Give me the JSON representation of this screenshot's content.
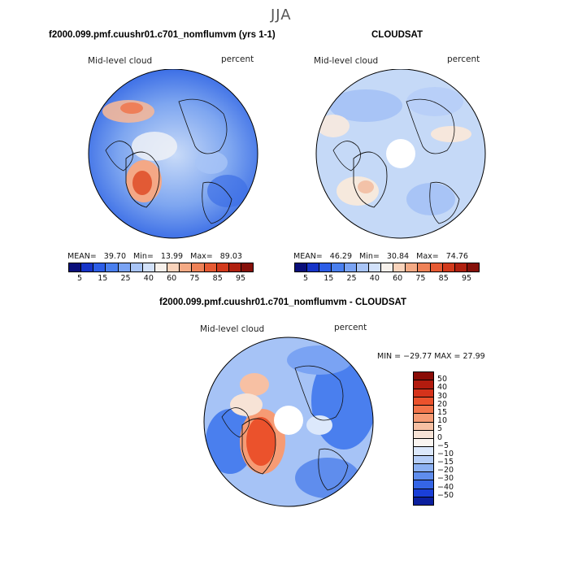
{
  "season": "JJA",
  "panels": [
    {
      "title": "f2000.099.pmf.cuushr01.c701_nomflumvm (yrs 1-1)",
      "variable": "Mid-level cloud",
      "units": "percent",
      "mean_label": "MEAN=",
      "mean": "39.70",
      "min_label": "Min=",
      "min": "13.99",
      "max_label": "Max=",
      "max": "89.03"
    },
    {
      "title": "CLOUDSAT",
      "variable": "Mid-level cloud",
      "units": "percent",
      "mean_label": "MEAN=",
      "mean": "46.29",
      "min_label": "Min=",
      "min": "30.84",
      "max_label": "Max=",
      "max": "74.76"
    }
  ],
  "colorbar_top": {
    "ticks": [
      "5",
      "15",
      "25",
      "40",
      "60",
      "75",
      "85",
      "95"
    ],
    "colors": [
      "#0a0f7a",
      "#1634c8",
      "#2c5de6",
      "#4a7fee",
      "#7aa3f3",
      "#a8c4f6",
      "#d2e1fa",
      "#f7f1ec",
      "#f9d3bb",
      "#f4aa85",
      "#ee8258",
      "#e65a33",
      "#d23a1c",
      "#b0200f",
      "#86100a"
    ]
  },
  "diff_panel": {
    "title": "f2000.099.pmf.cuushr01.c701_nomflumvm - CLOUDSAT",
    "variable": "Mid-level cloud",
    "units": "percent",
    "minmax_text": "MIN = −29.77  MAX =   27.99",
    "colorbar_ticks": [
      "50",
      "40",
      "30",
      "20",
      "15",
      "10",
      "5",
      "0",
      "−5",
      "−10",
      "−15",
      "−20",
      "−30",
      "−40",
      "−50"
    ],
    "colorbar_colors": [
      "#8a0c06",
      "#b21b0e",
      "#d5331b",
      "#eb522c",
      "#f3744a",
      "#f69b74",
      "#f7c0a3",
      "#f7e3d6",
      "#fbf5f0",
      "#dce8fb",
      "#b6cef8",
      "#8cb1f3",
      "#5f8ded",
      "#3565e6",
      "#1a3fd8",
      "#0b1f9e"
    ]
  }
}
